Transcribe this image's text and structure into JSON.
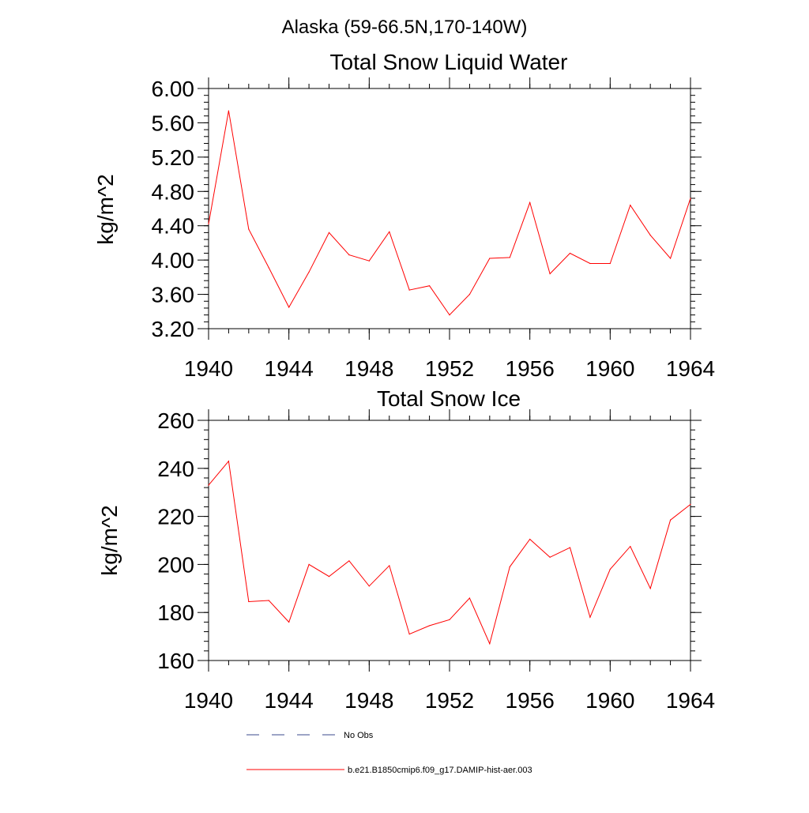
{
  "figure": {
    "title": "Alaska (59-66.5N,170-140W)"
  },
  "legend": {
    "items": [
      {
        "label": "No Obs",
        "style": "dashed",
        "color": "#3b4a8c"
      },
      {
        "label": "b.e21.B1850cmip6.f09_g17.DAMIP-hist-aer.003",
        "style": "solid",
        "color": "#ff0000"
      }
    ]
  },
  "chart_data": [
    {
      "type": "line",
      "title": "Total Snow Liquid Water",
      "ylabel": "kg/m^2",
      "xlabel": "",
      "xlim": [
        1940,
        1964
      ],
      "ylim": [
        3.2,
        6.0
      ],
      "xticks": [
        1940,
        1944,
        1948,
        1952,
        1956,
        1960,
        1964
      ],
      "yticks": [
        3.2,
        3.6,
        4.0,
        4.4,
        4.8,
        5.2,
        5.6,
        6.0
      ],
      "ytick_labels": [
        "3.20",
        "3.60",
        "4.00",
        "4.40",
        "4.80",
        "5.20",
        "5.60",
        "6.00"
      ],
      "series": [
        {
          "color": "#ff0000",
          "x": [
            1940,
            1941,
            1942,
            1943,
            1944,
            1945,
            1946,
            1947,
            1948,
            1949,
            1950,
            1951,
            1952,
            1953,
            1954,
            1955,
            1956,
            1957,
            1958,
            1959,
            1960,
            1961,
            1962,
            1963,
            1964
          ],
          "values": [
            4.42,
            5.74,
            4.36,
            3.91,
            3.45,
            3.86,
            4.32,
            4.06,
            3.99,
            4.33,
            3.65,
            3.7,
            3.36,
            3.6,
            4.02,
            4.03,
            4.67,
            3.84,
            4.08,
            3.96,
            3.96,
            4.64,
            4.29,
            4.02,
            4.72
          ]
        }
      ]
    },
    {
      "type": "line",
      "title": "Total Snow Ice",
      "ylabel": "kg/m^2",
      "xlabel": "",
      "xlim": [
        1940,
        1964
      ],
      "ylim": [
        160,
        260
      ],
      "xticks": [
        1940,
        1944,
        1948,
        1952,
        1956,
        1960,
        1964
      ],
      "yticks": [
        160,
        180,
        200,
        220,
        240,
        260
      ],
      "ytick_labels": [
        "160",
        "180",
        "200",
        "220",
        "240",
        "260"
      ],
      "series": [
        {
          "color": "#ff0000",
          "x": [
            1940,
            1941,
            1942,
            1943,
            1944,
            1945,
            1946,
            1947,
            1948,
            1949,
            1950,
            1951,
            1952,
            1953,
            1954,
            1955,
            1956,
            1957,
            1958,
            1959,
            1960,
            1961,
            1962,
            1963,
            1964
          ],
          "values": [
            233,
            243,
            184.5,
            185,
            176,
            200,
            195,
            201.5,
            191,
            199.5,
            171,
            174.5,
            177,
            186,
            167,
            199,
            210.5,
            203,
            207,
            178,
            198,
            207.5,
            190,
            218.5,
            225
          ]
        }
      ]
    }
  ]
}
